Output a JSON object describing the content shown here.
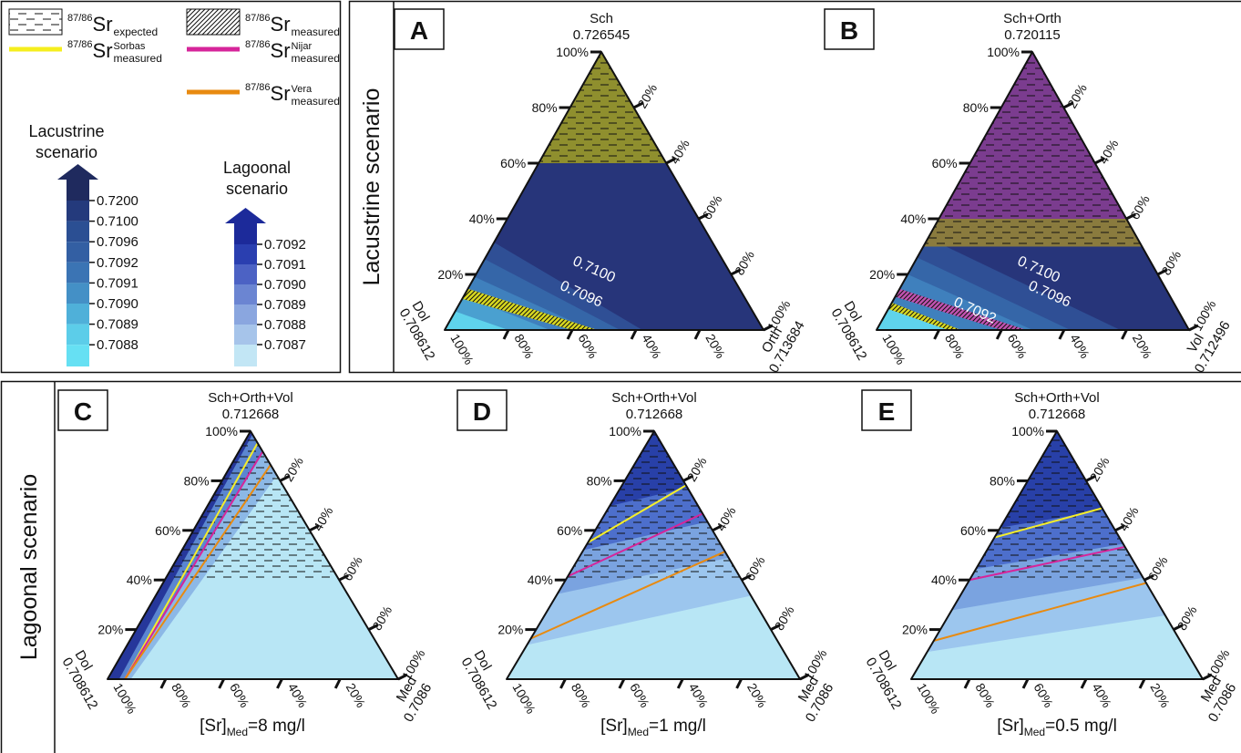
{
  "legend": {
    "items": [
      {
        "sup": "87/86",
        "base": "Sr",
        "sub": "expected"
      },
      {
        "sup": "87/86",
        "base": "Sr",
        "sub": "measured"
      },
      {
        "sup": "87/86",
        "base": "Sr",
        "sup2": "Sorbas",
        "sub": "measured"
      },
      {
        "sup": "87/86",
        "base": "Sr",
        "sup2": "Nijar",
        "sub": "measured"
      },
      {
        "sup": "87/86",
        "base": "Sr",
        "sup2": "Vera",
        "sub": "measured"
      }
    ],
    "lacustrine": {
      "title_lines": [
        "Lacustrine",
        "scenario"
      ],
      "levels": [
        "0.7200",
        "0.7100",
        "0.7096",
        "0.7092",
        "0.7091",
        "0.7090",
        "0.7089",
        "0.7088"
      ]
    },
    "lagoonal": {
      "title_lines": [
        "Lagoonal",
        "scenario"
      ],
      "levels": [
        "0.7092",
        "0.7091",
        "0.7090",
        "0.7089",
        "0.7088",
        "0.7087"
      ]
    }
  },
  "row_labels": [
    "Lacustrine scenario",
    "Lagoonal scenario"
  ],
  "panels": [
    {
      "letter": "A",
      "apex": {
        "name": "Sch",
        "value": "0.726545"
      },
      "left": {
        "name": "Dol",
        "value": "0.708612"
      },
      "right": {
        "name": "Orth",
        "value": "0.713684"
      },
      "left_ticks": [
        "20%",
        "40%",
        "60%",
        "80%",
        "100%"
      ],
      "right_ticks": [
        "20%",
        "40%",
        "60%",
        "80%",
        "100%"
      ],
      "bottom_ticks": [
        "100%",
        "80%",
        "60%",
        "40%",
        "20%"
      ],
      "contours": [
        "0.7100",
        "0.7096"
      ]
    },
    {
      "letter": "B",
      "apex": {
        "name": "Sch+Orth",
        "value": "0.720115"
      },
      "left": {
        "name": "Dol",
        "value": "0.708612"
      },
      "right": {
        "name": "Vol",
        "value": "0.712496"
      },
      "left_ticks": [
        "20%",
        "40%",
        "60%",
        "80%",
        "100%"
      ],
      "right_ticks": [
        "20%",
        "40%",
        "60%",
        "80%",
        "100%"
      ],
      "bottom_ticks": [
        "100%",
        "80%",
        "60%",
        "40%",
        "20%"
      ],
      "contours": [
        "0.7100",
        "0.7096",
        "0.7092"
      ]
    },
    {
      "letter": "C",
      "apex": {
        "name": "Sch+Orth+Vol",
        "value": "0.712668"
      },
      "left": {
        "name": "Dol",
        "value": "0.708612"
      },
      "right": {
        "name": "Med",
        "value": "0.7086"
      },
      "left_ticks": [
        "20%",
        "40%",
        "60%",
        "80%",
        "100%"
      ],
      "right_ticks": [
        "20%",
        "40%",
        "60%",
        "80%",
        "100%"
      ],
      "bottom_ticks": [
        "100%",
        "80%",
        "60%",
        "40%",
        "20%"
      ],
      "caption": {
        "base": "[Sr]",
        "sub": "Med",
        "rest": "=8 mg/l"
      }
    },
    {
      "letter": "D",
      "apex": {
        "name": "Sch+Orth+Vol",
        "value": "0.712668"
      },
      "left": {
        "name": "Dol",
        "value": "0.708612"
      },
      "right": {
        "name": "Med",
        "value": "0.7086"
      },
      "left_ticks": [
        "20%",
        "40%",
        "60%",
        "80%",
        "100%"
      ],
      "right_ticks": [
        "20%",
        "40%",
        "60%",
        "80%",
        "100%"
      ],
      "bottom_ticks": [
        "100%",
        "80%",
        "60%",
        "40%",
        "20%"
      ],
      "caption": {
        "base": "[Sr]",
        "sub": "Med",
        "rest": "=1 mg/l"
      }
    },
    {
      "letter": "E",
      "apex": {
        "name": "Sch+Orth+Vol",
        "value": "0.712668"
      },
      "left": {
        "name": "Dol",
        "value": "0.708612"
      },
      "right": {
        "name": "Med",
        "value": "0.7086"
      },
      "left_ticks": [
        "20%",
        "40%",
        "60%",
        "80%",
        "100%"
      ],
      "right_ticks": [
        "20%",
        "40%",
        "60%",
        "80%",
        "100%"
      ],
      "bottom_ticks": [
        "100%",
        "80%",
        "60%",
        "40%",
        "20%"
      ],
      "caption": {
        "base": "[Sr]",
        "sub": "Med",
        "rest": "=0.5 mg/l"
      }
    }
  ]
}
